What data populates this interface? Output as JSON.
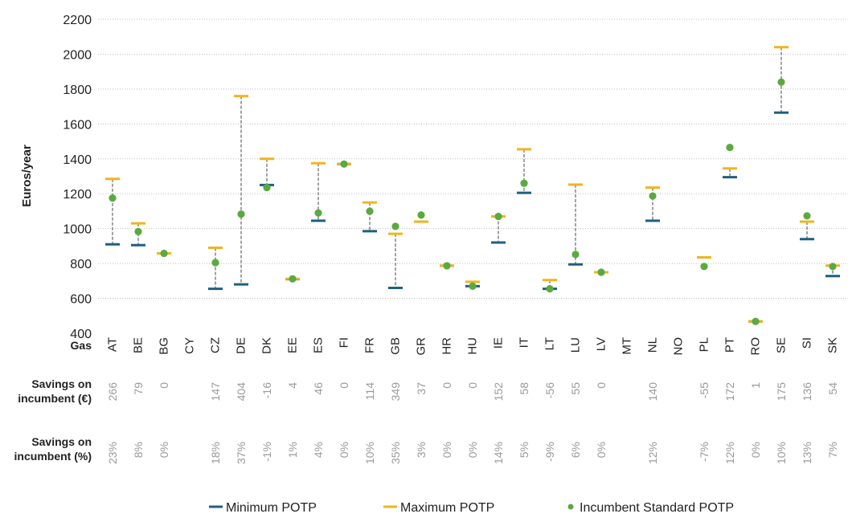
{
  "chart_data": {
    "type": "scatter",
    "ylabel": "Euros/year",
    "ylim": [
      400,
      2200
    ],
    "yticks": [
      400,
      600,
      800,
      1000,
      1200,
      1400,
      1600,
      1800,
      2000,
      2200
    ],
    "grid": true,
    "category_header": "Gas",
    "categories": [
      "AT",
      "BE",
      "BG",
      "CY",
      "CZ",
      "DE",
      "DK",
      "EE",
      "ES",
      "FI",
      "FR",
      "GB",
      "GR",
      "HR",
      "HU",
      "IE",
      "IT",
      "LT",
      "LU",
      "LV",
      "MT",
      "NL",
      "NO",
      "PL",
      "PT",
      "RO",
      "SE",
      "SI",
      "SK"
    ],
    "series": [
      {
        "name": "Minimum POTP",
        "color": "#1f5f82",
        "values": [
          910,
          905,
          858,
          null,
          655,
          680,
          1250,
          710,
          1045,
          1370,
          985,
          660,
          1040,
          787,
          670,
          920,
          1205,
          655,
          795,
          750,
          null,
          1045,
          null,
          null,
          1295,
          468,
          1665,
          940,
          728
        ]
      },
      {
        "name": "Maximum POTP",
        "color": "#f2b41c",
        "values": [
          1285,
          1030,
          858,
          null,
          890,
          1760,
          1400,
          712,
          1375,
          1370,
          1150,
          970,
          1040,
          787,
          695,
          1070,
          1455,
          705,
          1252,
          750,
          null,
          1235,
          null,
          835,
          1345,
          468,
          2040,
          1040,
          788
        ]
      },
      {
        "name": "Incumbent Standard POTP",
        "color": "#5aaa40",
        "values": [
          1175,
          983,
          858,
          null,
          805,
          1083,
          1235,
          712,
          1090,
          1370,
          1100,
          1013,
          1078,
          787,
          670,
          1070,
          1260,
          655,
          852,
          750,
          null,
          1187,
          null,
          783,
          1465,
          468,
          1840,
          1073,
          783
        ]
      }
    ],
    "rows": [
      {
        "label_line1": "Savings on",
        "label_line2": "incumbent (€)",
        "values": [
          "266",
          "79",
          "0",
          "",
          "147",
          "404",
          "-16",
          "4",
          "46",
          "0",
          "114",
          "349",
          "37",
          "0",
          "0",
          "152",
          "58",
          "-56",
          "55",
          "0",
          "",
          "140",
          "",
          "-55",
          "172",
          "1",
          "175",
          "136",
          "54"
        ]
      },
      {
        "label_line1": "Savings on",
        "label_line2": "incumbent (%)",
        "values": [
          "23%",
          "8%",
          "0%",
          "",
          "18%",
          "37%",
          "-1%",
          "1%",
          "4%",
          "0%",
          "10%",
          "35%",
          "3%",
          "0%",
          "0%",
          "14%",
          "5%",
          "-9%",
          "6%",
          "0%",
          "",
          "12%",
          "",
          "-7%",
          "12%",
          "0%",
          "10%",
          "13%",
          "7%"
        ]
      }
    ],
    "legend": [
      "Minimum POTP",
      "Maximum POTP",
      "Incumbent Standard POTP"
    ],
    "legend_position": "bottom"
  }
}
